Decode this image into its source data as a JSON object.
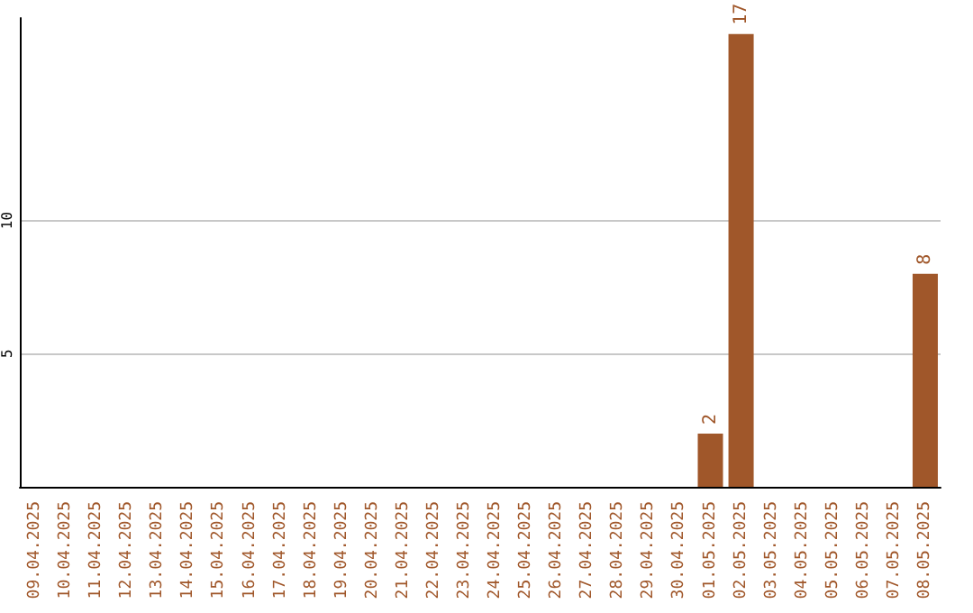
{
  "chart_data": {
    "type": "bar",
    "categories": [
      "09.04.2025",
      "10.04.2025",
      "11.04.2025",
      "12.04.2025",
      "13.04.2025",
      "14.04.2025",
      "15.04.2025",
      "16.04.2025",
      "17.04.2025",
      "18.04.2025",
      "19.04.2025",
      "20.04.2025",
      "21.04.2025",
      "22.04.2025",
      "23.04.2025",
      "24.04.2025",
      "25.04.2025",
      "26.04.2025",
      "27.04.2025",
      "28.04.2025",
      "29.04.2025",
      "30.04.2025",
      "01.05.2025",
      "02.05.2025",
      "03.05.2025",
      "04.05.2025",
      "05.05.2025",
      "06.05.2025",
      "07.05.2025",
      "08.05.2025"
    ],
    "values": [
      0,
      0,
      0,
      0,
      0,
      0,
      0,
      0,
      0,
      0,
      0,
      0,
      0,
      0,
      0,
      0,
      0,
      0,
      0,
      0,
      0,
      0,
      2,
      17,
      0,
      0,
      0,
      0,
      0,
      8
    ],
    "value_labels": [
      null,
      null,
      null,
      null,
      null,
      null,
      null,
      null,
      null,
      null,
      null,
      null,
      null,
      null,
      null,
      null,
      null,
      null,
      null,
      null,
      null,
      null,
      "2",
      "17",
      null,
      null,
      null,
      null,
      null,
      "8"
    ],
    "color": "#a0572a",
    "ylim": [
      0,
      17.6
    ],
    "yticks": [
      5,
      10
    ],
    "grid": "y"
  }
}
